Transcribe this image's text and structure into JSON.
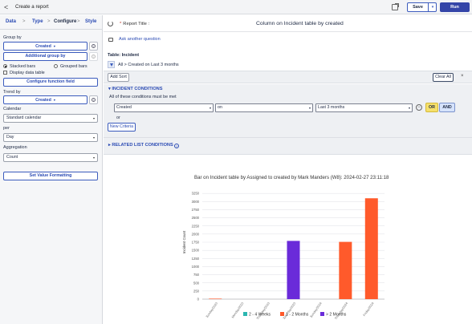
{
  "header": {
    "back_label": "<",
    "title": "Create a report",
    "save_label": "Save",
    "save_caret": "▾",
    "run_label": "Run"
  },
  "steps": [
    {
      "label": "Data"
    },
    {
      "label": "Type"
    },
    {
      "label": "Configure"
    },
    {
      "label": "Style"
    }
  ],
  "steps_sep": ">",
  "configure": {
    "group_by_label": "Group by",
    "group_by_value": "Created",
    "info_glyph": "i",
    "additional_group_by": "Additional group by",
    "stacked_bars": "Stacked bars",
    "grouped_bars": "Grouped bars",
    "display_data_table": "Display data table",
    "configure_function_field": "Configure function field",
    "trend_by_label": "Trend by",
    "trend_by_value": "Created",
    "calendar_label": "Calendar",
    "calendar_value": "Standard calendar",
    "per_label": "per",
    "per_value": "Day",
    "aggregation_label": "Aggregation",
    "aggregation_value": "Count",
    "set_value_formatting": "Set Value Formatting",
    "caret": "▾"
  },
  "main": {
    "report_title_label": "Report Title :",
    "report_title_required": "*",
    "report_name": "Column on Incident table by created",
    "ask_another_question": "Ask another question",
    "table_label": "Table: Incident",
    "breadcrumb": "All  >  Created on Last 3 months",
    "add_sort": "Add Sort",
    "clear_all": "Clear All",
    "close_glyph": "×",
    "conditions_title": "▾  INCIDENT CONDITIONS",
    "conditions_subtitle": "All of these conditions must be met",
    "cond_field": "Created",
    "cond_operator": "on",
    "cond_value": "Last 3 months",
    "delete_glyph": "−",
    "or_label": "OR",
    "and_label": "AND",
    "or_text": "or",
    "new_criteria": "New Criteria",
    "related_title": "▸  RELATED LIST CONDITIONS",
    "help_glyph": "?"
  },
  "chart_data": {
    "type": "bar",
    "title": "Bar on Incident table by Assigned to created by Mark Manders (W8): 2024-02-27 23:11:18",
    "ylabel": "Incident Count",
    "xlabel": "",
    "ylim": [
      0,
      3500
    ],
    "yticks": [
      0,
      250,
      500,
      750,
      1000,
      1250,
      1500,
      1750,
      2000,
      2250,
      2500,
      2750,
      3000,
      3250
    ],
    "categories": [
      "Sunday/2023",
      "Monday/2023",
      "Thursday/2023",
      "Saturday/2023",
      "Sunday/2024",
      "Thursday/2024",
      "Friday/2024"
    ],
    "series": [
      {
        "name": "2 - 4 Weeks",
        "color": "#2bb6b0",
        "values": [
          0,
          0,
          0,
          0,
          0,
          0,
          0
        ]
      },
      {
        "name": "1 - 2 Months",
        "color": "#ff5a2b",
        "values": [
          15,
          0,
          0,
          0,
          0,
          1760,
          3100
        ]
      },
      {
        "name": "> 2 Months",
        "color": "#6a2bd9",
        "values": [
          0,
          0,
          0,
          1790,
          0,
          0,
          0
        ]
      }
    ],
    "grid": true,
    "legend_position": "bottom"
  }
}
